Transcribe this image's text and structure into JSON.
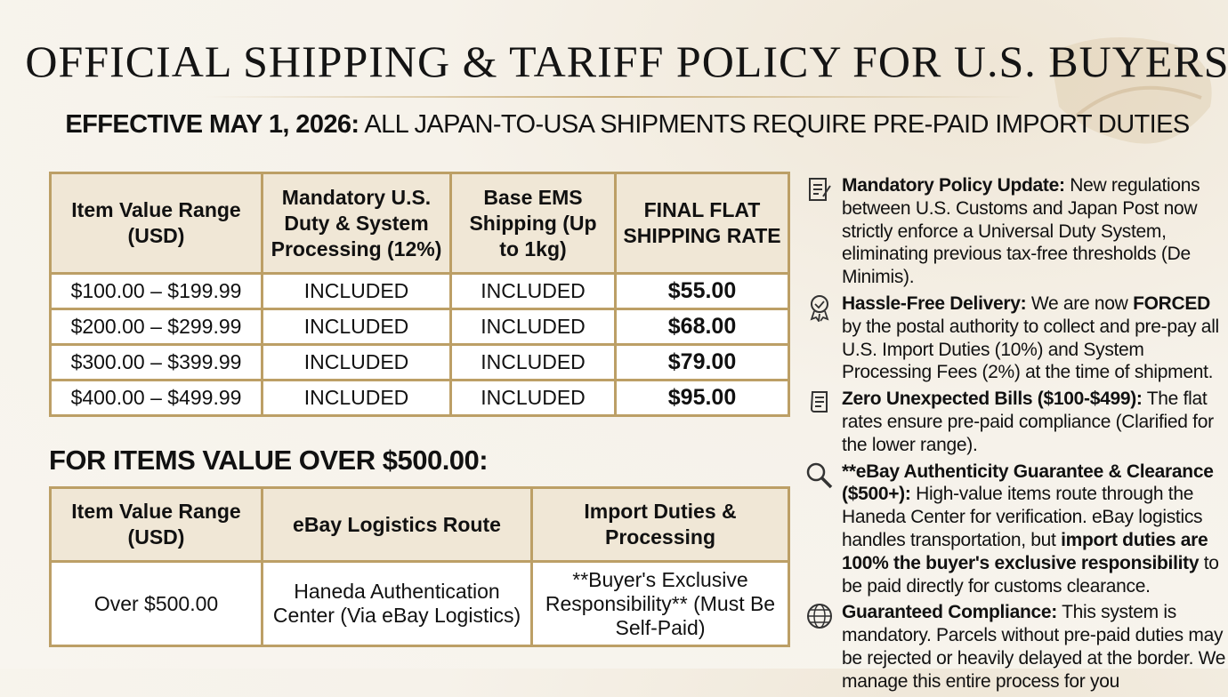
{
  "header": {
    "title": "OFFICIAL SHIPPING & TARIFF POLICY FOR U.S. BUYERS",
    "subtitle_lead": "EFFECTIVE MAY 1, 2026:",
    "subtitle_text": "ALL JAPAN-TO-USA SHIPMENTS REQUIRE PRE-PAID IMPORT DUTIES"
  },
  "table": {
    "headers": [
      "Item Value Range (USD)",
      "Mandatory U.S. Duty & System Processing (12%)",
      "Base EMS Shipping (Up to 1kg)",
      "FINAL FLAT SHIPPING RATE"
    ],
    "rows": [
      [
        "$100.00 – $199.99",
        "INCLUDED",
        "INCLUDED",
        "$55.00"
      ],
      [
        "$200.00 – $299.99",
        "INCLUDED",
        "INCLUDED",
        "$68.00"
      ],
      [
        "$300.00 – $399.99",
        "INCLUDED",
        "INCLUDED",
        "$79.00"
      ],
      [
        "$400.00 – $499.99",
        "INCLUDED",
        "INCLUDED",
        "$95.00"
      ]
    ]
  },
  "section": {
    "heading": "FOR ITEMS VALUE OVER $500.00:"
  },
  "table2": {
    "headers": [
      "Item Value Range (USD)",
      "eBay Logistics Route",
      "Import Duties & Processing"
    ],
    "rows": [
      [
        "Over $500.00",
        "Haneda Authentication Center (Via eBay Logistics)",
        "**Buyer's Exclusive Responsibility** (Must Be Self-Paid)"
      ]
    ]
  },
  "items": [
    [
      "Mandatory Policy Update:",
      "New regulations between U.S. Customs and Japan Post now strictly enforce a Universal Duty System, eliminating previous tax-free thresholds (De Minimis)."
    ],
    [
      "Hassle-Free Delivery:",
      "We are now",
      "FORCED",
      "by the postal authority to collect and pre-pay all U.S. Import Duties (10%) and System Processing Fees (2%) at the time of shipment."
    ],
    [
      "Zero Unexpected Bills ($100-$499):",
      "The flat rates ensure pre-paid compliance (Clarified for the lower range)."
    ],
    [
      "**eBay Authenticity Guarantee & Clearance ($500+):",
      "High-value items route through the Haneda Center for verification. eBay logistics handles transportation, but",
      "import duties are 100% the buyer's exclusive responsibility",
      "to be paid directly for customs clearance."
    ],
    [
      "Guaranteed Compliance:",
      "This system is mandatory. Parcels without pre-paid duties may be rejected or heavily delayed at the border. We manage this entire process for you"
    ]
  ]
}
